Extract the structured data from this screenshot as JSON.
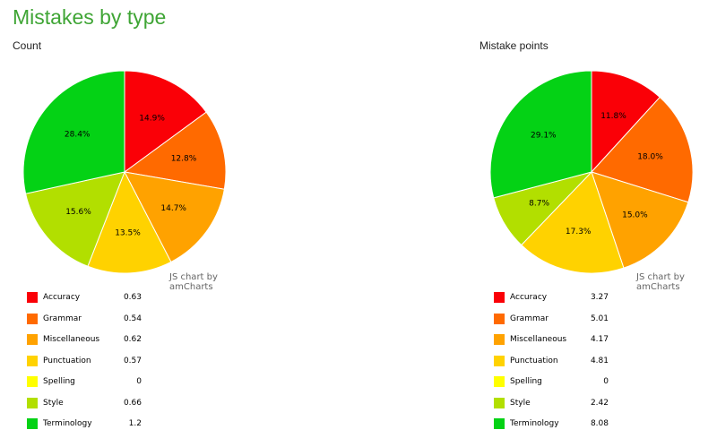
{
  "header": {
    "title": "Mistakes by type"
  },
  "chart_data": [
    {
      "type": "pie",
      "title": "Count",
      "credit": "JS chart by amCharts",
      "categories": [
        "Accuracy",
        "Grammar",
        "Miscellaneous",
        "Punctuation",
        "Spelling",
        "Style",
        "Terminology"
      ],
      "values": [
        0.63,
        0.54,
        0.62,
        0.57,
        0,
        0.66,
        1.2
      ],
      "slice_labels": [
        "14.9%",
        "12.8%",
        "14.7%",
        "13.5%",
        "",
        "15.6%",
        "28.4%"
      ],
      "colors": [
        "#fa0007",
        "#ff6a00",
        "#ffa200",
        "#ffd200",
        "#ffff00",
        "#b2df00",
        "#04d215"
      ]
    },
    {
      "type": "pie",
      "title": "Mistake points",
      "credit": "JS chart by amCharts",
      "categories": [
        "Accuracy",
        "Grammar",
        "Miscellaneous",
        "Punctuation",
        "Spelling",
        "Style",
        "Terminology"
      ],
      "values": [
        3.27,
        5.01,
        4.17,
        4.81,
        0,
        2.42,
        8.08
      ],
      "slice_labels": [
        "11.8%",
        "18.0%",
        "15.0%",
        "17.3%",
        "",
        "8.7%",
        "29.1%"
      ],
      "colors": [
        "#fa0007",
        "#ff6a00",
        "#ffa200",
        "#ffd200",
        "#ffff00",
        "#b2df00",
        "#04d215"
      ]
    }
  ]
}
